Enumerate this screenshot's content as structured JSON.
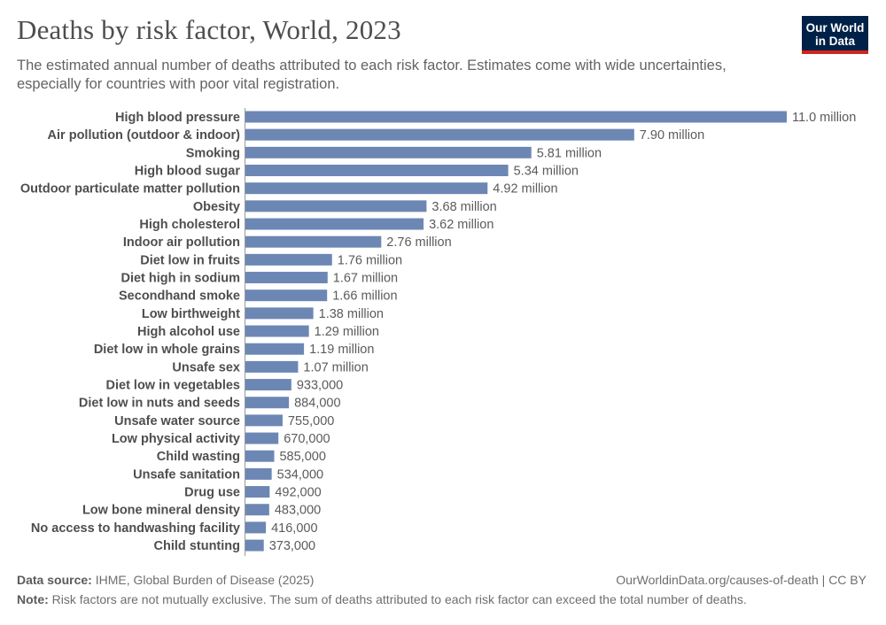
{
  "header": {
    "title": "Deaths by risk factor, World, 2023",
    "subtitle": "The estimated annual number of deaths attributed to each risk factor. Estimates come with wide uncertainties, especially for countries with poor vital registration.",
    "logo_line1": "Our World",
    "logo_line2": "in Data"
  },
  "footer": {
    "source_label": "Data source:",
    "source_text": "IHME, Global Burden of Disease (2025)",
    "url": "OurWorldinData.org/causes-of-death | CC BY",
    "note_label": "Note:",
    "note_text": "Risk factors are not mutually exclusive. The sum of deaths attributed to each risk factor can exceed the total number of deaths."
  },
  "chart_data": {
    "type": "bar",
    "orientation": "horizontal",
    "bar_color": "#6d87b4",
    "unit": "deaths",
    "categories": [
      "High blood pressure",
      "Air pollution (outdoor & indoor)",
      "Smoking",
      "High blood sugar",
      "Outdoor particulate matter pollution",
      "Obesity",
      "High cholesterol",
      "Indoor air pollution",
      "Diet low in fruits",
      "Diet high in sodium",
      "Secondhand smoke",
      "Low birthweight",
      "High alcohol use",
      "Diet low in whole grains",
      "Unsafe sex",
      "Diet low in vegetables",
      "Diet low in nuts and seeds",
      "Unsafe water source",
      "Low physical activity",
      "Child wasting",
      "Unsafe sanitation",
      "Drug use",
      "Low bone mineral density",
      "No access to handwashing facility",
      "Child stunting"
    ],
    "values": [
      11000000,
      7900000,
      5810000,
      5340000,
      4920000,
      3680000,
      3620000,
      2760000,
      1760000,
      1670000,
      1660000,
      1380000,
      1290000,
      1190000,
      1070000,
      933000,
      884000,
      755000,
      670000,
      585000,
      534000,
      492000,
      483000,
      416000,
      373000
    ],
    "value_labels": [
      "11.0 million",
      "7.90 million",
      "5.81 million",
      "5.34 million",
      "4.92 million",
      "3.68 million",
      "3.62 million",
      "2.76 million",
      "1.76 million",
      "1.67 million",
      "1.66 million",
      "1.38 million",
      "1.29 million",
      "1.19 million",
      "1.07 million",
      "933,000",
      "884,000",
      "755,000",
      "670,000",
      "585,000",
      "534,000",
      "492,000",
      "483,000",
      "416,000",
      "373,000"
    ]
  }
}
